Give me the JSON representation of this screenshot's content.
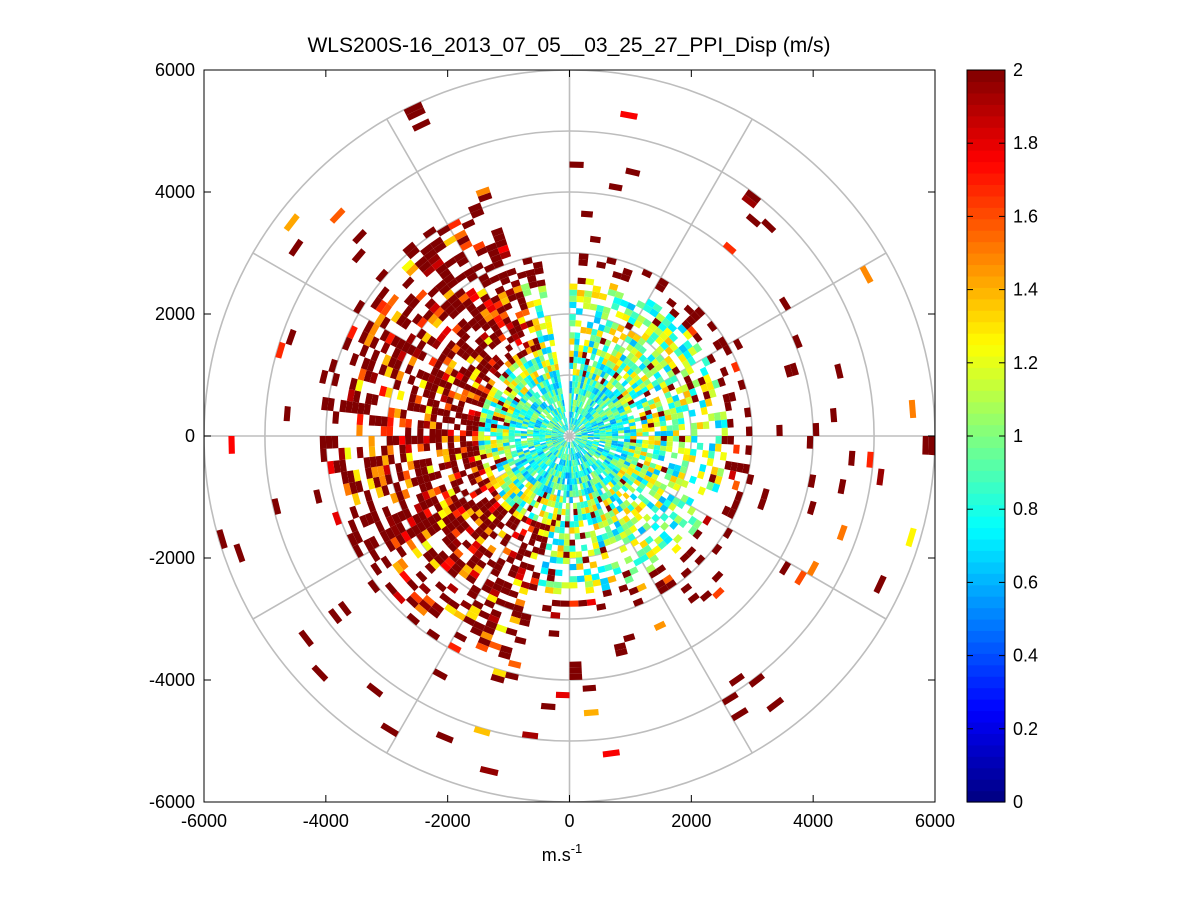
{
  "chart_data": {
    "type": "heatmap",
    "subtype": "polar-ppi",
    "title": "WLS200S-16_2013_07_05__03_25_27_PPI_Disp (m/s)",
    "xlabel": "m.s",
    "xlabel_superscript": "-1",
    "ylabel": "",
    "xlim": [
      -6000,
      6000
    ],
    "ylim": [
      -6000,
      6000
    ],
    "xticks": [
      -6000,
      -4000,
      -2000,
      0,
      2000,
      4000,
      6000
    ],
    "yticks": [
      6000,
      4000,
      2000,
      0,
      -2000,
      -4000,
      -6000
    ],
    "xtick_labels": [
      "-6000",
      "-4000",
      "-2000",
      "0",
      "2000",
      "4000",
      "6000"
    ],
    "ytick_labels": [
      "6000",
      "4000",
      "2000",
      "0",
      "-2000",
      "-4000",
      "-6000"
    ],
    "range_rings": [
      1000,
      2000,
      3000,
      4000,
      5000,
      6000
    ],
    "spokes_deg": [
      0,
      30,
      60,
      90,
      120,
      150,
      180,
      210,
      240,
      270,
      300,
      330
    ],
    "colorbar": {
      "colormap": "jet",
      "min": 0,
      "max": 2,
      "ticks": [
        2,
        1.8,
        1.6,
        1.4,
        1.2,
        1,
        0.8,
        0.6,
        0.4,
        0.2,
        0
      ],
      "tick_labels": [
        "2",
        "1.8",
        "1.6",
        "1.4",
        "1.2",
        "1",
        "0.8",
        "0.6",
        "0.4",
        "0.2",
        "0"
      ]
    },
    "bin_width_m": 100,
    "azimuth_step_deg": 3,
    "data_range_m": [
      0,
      6000
    ],
    "field_description_note": "Wind speed dispersion field; inner rings dense (values ~0.6-1.2), west/south sector high (>=2), outer ranges sparse with saturated values."
  }
}
